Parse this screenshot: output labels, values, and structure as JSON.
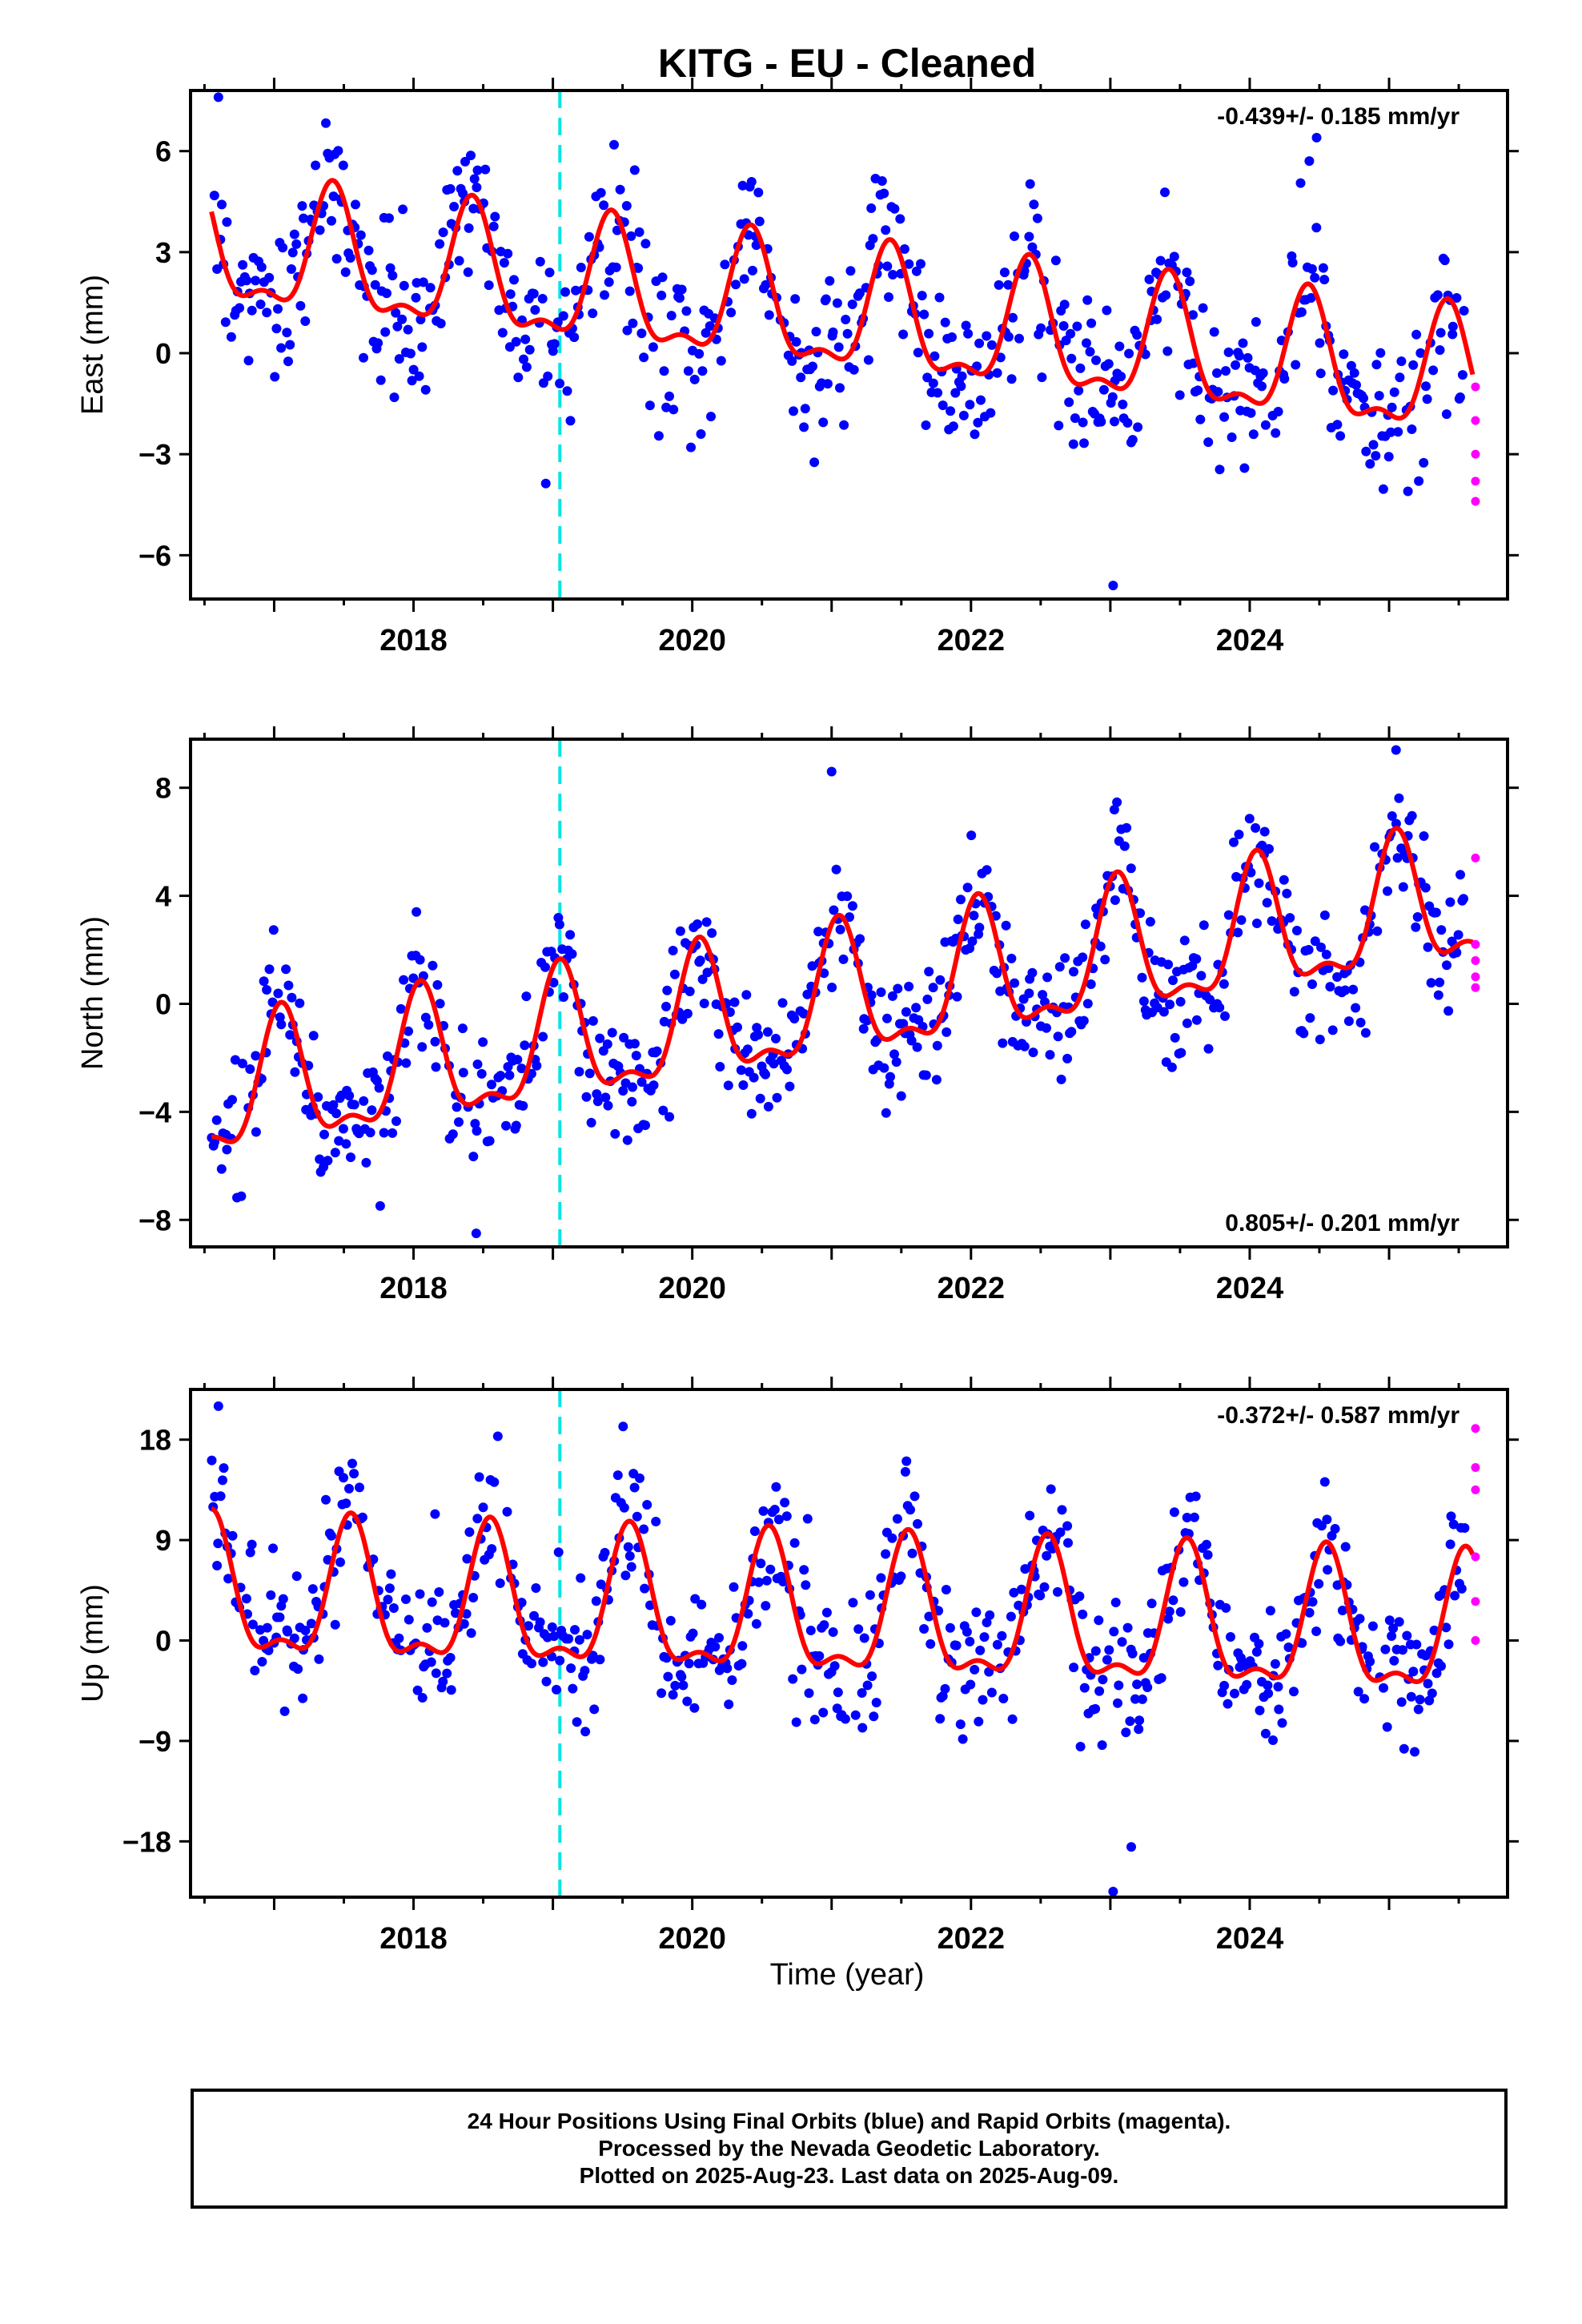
{
  "title": "KITG  - EU - Cleaned",
  "x_label": "Time (year)",
  "footer": {
    "line1": "24 Hour Positions Using Final Orbits (blue) and Rapid Orbits (magenta).",
    "line2": "Processed by the Nevada Geodetic Laboratory.",
    "line3": "Plotted on 2025-Aug-23. Last data on 2025-Aug-09."
  },
  "colors": {
    "final_points": "#0000ff",
    "rapid_points": "#ff00ff",
    "model_fit": "#ff0000",
    "event_line": "#00e5e5",
    "frame": "#000000"
  },
  "chart_data": [
    {
      "type": "scatter",
      "component": "east",
      "ylabel": "East (mm)",
      "rate_text": "-0.439+/- 0.185 mm/yr",
      "rate_position": "top-right",
      "xlim": [
        2016.4,
        2025.85
      ],
      "ylim": [
        -7.3,
        7.8
      ],
      "y_ticks": [
        -6,
        -3,
        0,
        3,
        6
      ],
      "y_tick_labels": [
        "−6",
        "−3",
        "0",
        "3",
        "6"
      ],
      "x_ticks": [
        2018,
        2020,
        2022,
        2024
      ],
      "x_tick_labels": [
        "2018",
        "2020",
        "2022",
        "2024"
      ],
      "event_line_x": 2019.05,
      "fit": {
        "offset": 1.1,
        "trend": -0.439,
        "t0": 2021.0,
        "amp": 2.05,
        "peak": 2017.42,
        "noise_sd": 1.15
      },
      "extremes": [
        {
          "x": 2016.6,
          "y": 7.6
        },
        {
          "x": 2024.48,
          "y": 6.4
        },
        {
          "x": 2023.02,
          "y": -6.9
        }
      ],
      "rapid_points": [
        {
          "x": 2025.62,
          "y": -1.0
        },
        {
          "x": 2025.62,
          "y": -2.0
        },
        {
          "x": 2025.62,
          "y": -3.0
        },
        {
          "x": 2025.62,
          "y": -3.8
        },
        {
          "x": 2025.62,
          "y": -4.4
        }
      ]
    },
    {
      "type": "scatter",
      "component": "north",
      "ylabel": "North (mm)",
      "rate_text": "0.805+/- 0.201 mm/yr",
      "rate_position": "bottom-right",
      "xlim": [
        2016.4,
        2025.85
      ],
      "ylim": [
        -9.0,
        9.8
      ],
      "y_ticks": [
        -8,
        -4,
        0,
        4,
        8
      ],
      "y_tick_labels": [
        "−8",
        "−4",
        "0",
        "4",
        "8"
      ],
      "x_ticks": [
        2018,
        2020,
        2022,
        2024
      ],
      "x_tick_labels": [
        "2018",
        "2020",
        "2022",
        "2024"
      ],
      "event_line_x": 2019.05,
      "fit": {
        "offset": 0.0,
        "trend": 0.805,
        "t0": 2021.0,
        "amp": 2.7,
        "peak": 2017.05,
        "noise_sd": 1.2
      },
      "extremes": [
        {
          "x": 2018.45,
          "y": -8.5
        },
        {
          "x": 2021.0,
          "y": 8.6
        },
        {
          "x": 2025.05,
          "y": 9.4
        }
      ],
      "rapid_points": [
        {
          "x": 2025.62,
          "y": 5.4
        },
        {
          "x": 2025.62,
          "y": 2.2
        },
        {
          "x": 2025.62,
          "y": 1.6
        },
        {
          "x": 2025.62,
          "y": 1.0
        },
        {
          "x": 2025.62,
          "y": 0.6
        }
      ]
    },
    {
      "type": "scatter",
      "component": "up",
      "ylabel": "Up (mm)",
      "rate_text": "-0.372+/- 0.587 mm/yr",
      "rate_position": "top-right",
      "xlim": [
        2016.4,
        2025.85
      ],
      "ylim": [
        -23.0,
        22.5
      ],
      "y_ticks": [
        -18,
        -9,
        0,
        9,
        18
      ],
      "y_tick_labels": [
        "−18",
        "−9",
        "0",
        "9",
        "18"
      ],
      "x_ticks": [
        2018,
        2020,
        2022,
        2024
      ],
      "x_tick_labels": [
        "2018",
        "2020",
        "2022",
        "2024"
      ],
      "event_line_x": 2019.05,
      "fit": {
        "offset": 2.0,
        "trend": -0.372,
        "t0": 2021.0,
        "amp": 6.8,
        "peak": 2017.55,
        "noise_sd": 3.2
      },
      "extremes": [
        {
          "x": 2016.6,
          "y": 21.0
        },
        {
          "x": 2023.02,
          "y": -22.5
        },
        {
          "x": 2023.15,
          "y": -18.5
        }
      ],
      "rapid_points": [
        {
          "x": 2025.62,
          "y": 19.0
        },
        {
          "x": 2025.62,
          "y": 15.5
        },
        {
          "x": 2025.62,
          "y": 13.5
        },
        {
          "x": 2025.62,
          "y": 7.5
        },
        {
          "x": 2025.62,
          "y": 3.5
        },
        {
          "x": 2025.62,
          "y": 0.0
        }
      ]
    }
  ]
}
